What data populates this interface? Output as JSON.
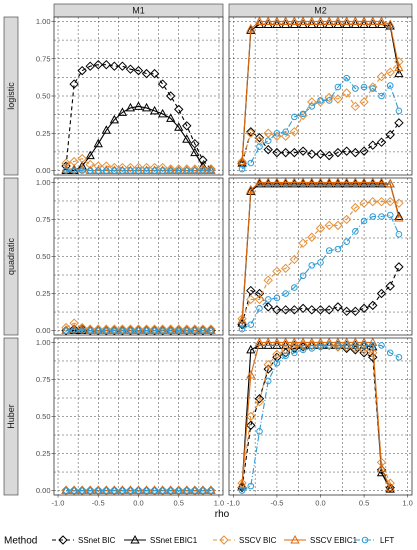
{
  "chart_data": {
    "type": "line",
    "xlabel": "rho",
    "ylim": [
      0,
      1
    ],
    "xlim": [
      -1.05,
      1.05
    ],
    "yticks": [
      "0.00",
      "0.25",
      "0.50",
      "0.75",
      "1.00"
    ],
    "yticks_values": [
      0,
      0.25,
      0.5,
      0.75,
      1.0
    ],
    "xticks": [
      "-1.0",
      "-0.5",
      "0.0",
      "0.5",
      "1.0"
    ],
    "xticks_values": [
      -1.0,
      -0.5,
      0.0,
      0.5,
      1.0
    ],
    "columns": [
      "M1",
      "M2"
    ],
    "rows": [
      "logistic",
      "quadratic",
      "Huber"
    ],
    "grid": true,
    "legend": {
      "title": "Method",
      "placement": "bottom",
      "entries": [
        {
          "label": "SSnet BIC",
          "color": "#000000",
          "marker": "diamond",
          "dash": "4,3"
        },
        {
          "label": "SSnet EBIC1",
          "color": "#000000",
          "marker": "triangle",
          "dash": ""
        },
        {
          "label": "SSCV BIC",
          "color": "#E69138",
          "marker": "diamond",
          "dash": "4,3"
        },
        {
          "label": "SSCV EBIC1",
          "color": "#D9690F",
          "marker": "triangle",
          "dash": ""
        },
        {
          "label": "LFT",
          "color": "#2E9CD6",
          "marker": "circle",
          "dash": "6,2,1,2"
        }
      ]
    },
    "x": [
      -0.9,
      -0.8,
      -0.7,
      -0.6,
      -0.5,
      -0.4,
      -0.3,
      -0.2,
      -0.1,
      0.0,
      0.1,
      0.2,
      0.3,
      0.4,
      0.5,
      0.6,
      0.7,
      0.8,
      0.9
    ],
    "panels": [
      {
        "row": "logistic",
        "column": "M1",
        "series": [
          {
            "method": "SSnet BIC",
            "values": [
              0.03,
              0.58,
              0.67,
              0.7,
              0.71,
              0.71,
              0.7,
              0.7,
              0.68,
              0.67,
              0.65,
              0.65,
              0.58,
              0.5,
              0.41,
              0.3,
              0.18,
              0.07,
              0.01
            ]
          },
          {
            "method": "SSnet EBIC1",
            "values": [
              0.0,
              0.0,
              0.03,
              0.1,
              0.18,
              0.27,
              0.34,
              0.39,
              0.42,
              0.43,
              0.42,
              0.4,
              0.38,
              0.35,
              0.29,
              0.21,
              0.12,
              0.03,
              0.0
            ]
          },
          {
            "method": "SSCV BIC",
            "values": [
              0.05,
              0.06,
              0.08,
              0.04,
              0.03,
              0.03,
              0.02,
              0.02,
              0.02,
              0.02,
              0.02,
              0.02,
              0.02,
              0.01,
              0.01,
              0.01,
              0.01,
              0.01,
              0.01
            ]
          },
          {
            "method": "SSCV EBIC1",
            "values": [
              0.01,
              0.01,
              0.01,
              0.0,
              0.0,
              0.0,
              0.0,
              0.0,
              0.0,
              0.0,
              0.0,
              0.0,
              0.0,
              0.0,
              0.0,
              0.0,
              0.0,
              0.0,
              0.0
            ]
          },
          {
            "method": "LFT",
            "values": [
              0.0,
              0.0,
              0.0,
              0.0,
              0.0,
              0.0,
              0.0,
              0.0,
              0.0,
              0.0,
              0.0,
              0.0,
              0.0,
              0.0,
              0.0,
              0.0,
              0.0,
              0.0,
              0.0
            ]
          }
        ]
      },
      {
        "row": "logistic",
        "column": "M2",
        "series": [
          {
            "method": "SSnet BIC",
            "values": [
              0.05,
              0.26,
              0.22,
              0.14,
              0.12,
              0.12,
              0.12,
              0.13,
              0.11,
              0.11,
              0.1,
              0.12,
              0.13,
              0.12,
              0.13,
              0.17,
              0.19,
              0.24,
              0.32
            ]
          },
          {
            "method": "SSnet EBIC1",
            "values": [
              0.05,
              0.94,
              0.98,
              0.98,
              0.98,
              0.98,
              0.98,
              0.98,
              0.98,
              0.98,
              0.98,
              0.98,
              0.98,
              0.98,
              0.98,
              0.98,
              0.98,
              0.97,
              0.65
            ]
          },
          {
            "method": "SSCV BIC",
            "values": [
              0.06,
              0.25,
              0.2,
              0.25,
              0.23,
              0.23,
              0.26,
              0.37,
              0.46,
              0.46,
              0.49,
              0.48,
              0.52,
              0.43,
              0.46,
              0.56,
              0.63,
              0.66,
              0.73
            ]
          },
          {
            "method": "SSCV EBIC1",
            "values": [
              0.06,
              0.95,
              1.0,
              1.0,
              1.0,
              1.0,
              1.0,
              1.0,
              1.0,
              1.0,
              1.0,
              1.0,
              1.0,
              1.0,
              1.0,
              1.0,
              1.0,
              0.98,
              0.69
            ]
          },
          {
            "method": "LFT",
            "values": [
              0.01,
              0.05,
              0.16,
              0.2,
              0.25,
              0.26,
              0.36,
              0.38,
              0.43,
              0.47,
              0.47,
              0.56,
              0.62,
              0.55,
              0.56,
              0.55,
              0.5,
              0.57,
              0.4
            ]
          }
        ]
      },
      {
        "row": "quadratic",
        "column": "M1",
        "series": [
          {
            "method": "SSnet BIC",
            "values": [
              0.0,
              0.01,
              0.01,
              0.0,
              0.0,
              0.0,
              0.0,
              0.0,
              0.0,
              0.0,
              0.0,
              0.0,
              0.0,
              0.0,
              0.0,
              0.0,
              0.0,
              0.0,
              0.0
            ]
          },
          {
            "method": "SSnet EBIC1",
            "values": [
              0.0,
              0.0,
              0.0,
              0.0,
              0.0,
              0.0,
              0.0,
              0.0,
              0.0,
              0.0,
              0.0,
              0.0,
              0.0,
              0.0,
              0.0,
              0.0,
              0.0,
              0.0,
              0.0
            ]
          },
          {
            "method": "SSCV BIC",
            "values": [
              0.02,
              0.05,
              0.02,
              0.01,
              0.01,
              0.01,
              0.01,
              0.01,
              0.01,
              0.01,
              0.01,
              0.01,
              0.01,
              0.01,
              0.01,
              0.01,
              0.01,
              0.01,
              0.01
            ]
          },
          {
            "method": "SSCV EBIC1",
            "values": [
              0.0,
              0.01,
              0.01,
              0.0,
              0.0,
              0.0,
              0.0,
              0.0,
              0.0,
              0.0,
              0.0,
              0.0,
              0.0,
              0.0,
              0.0,
              0.0,
              0.0,
              0.0,
              0.0
            ]
          },
          {
            "method": "LFT",
            "values": [
              0.0,
              0.0,
              0.0,
              0.0,
              0.0,
              0.0,
              0.0,
              0.0,
              0.0,
              0.0,
              0.0,
              0.0,
              0.0,
              0.0,
              0.0,
              0.0,
              0.0,
              0.0,
              0.0
            ]
          }
        ]
      },
      {
        "row": "quadratic",
        "column": "M2",
        "series": [
          {
            "method": "SSnet BIC",
            "values": [
              0.04,
              0.27,
              0.25,
              0.16,
              0.14,
              0.14,
              0.14,
              0.15,
              0.14,
              0.14,
              0.14,
              0.16,
              0.13,
              0.13,
              0.15,
              0.17,
              0.25,
              0.3,
              0.43
            ]
          },
          {
            "method": "SSnet EBIC1",
            "values": [
              0.05,
              0.94,
              0.99,
              0.99,
              0.99,
              0.99,
              0.99,
              0.99,
              0.99,
              0.99,
              0.99,
              0.99,
              0.99,
              0.99,
              0.99,
              0.99,
              0.99,
              0.99,
              0.77
            ]
          },
          {
            "method": "SSCV BIC",
            "values": [
              0.08,
              0.21,
              0.21,
              0.34,
              0.4,
              0.42,
              0.48,
              0.59,
              0.63,
              0.69,
              0.71,
              0.71,
              0.75,
              0.83,
              0.86,
              0.87,
              0.87,
              0.87,
              0.86
            ]
          },
          {
            "method": "SSCV EBIC1",
            "values": [
              0.07,
              0.95,
              1.0,
              1.0,
              1.0,
              1.0,
              1.0,
              1.0,
              1.0,
              1.0,
              1.0,
              1.0,
              1.0,
              1.0,
              1.0,
              1.0,
              1.0,
              0.99,
              0.76
            ]
          },
          {
            "method": "LFT",
            "values": [
              0.01,
              0.04,
              0.15,
              0.21,
              0.22,
              0.25,
              0.29,
              0.37,
              0.44,
              0.46,
              0.54,
              0.55,
              0.6,
              0.67,
              0.74,
              0.77,
              0.77,
              0.78,
              0.65
            ]
          }
        ]
      },
      {
        "row": "Huber",
        "column": "M1",
        "series": [
          {
            "method": "SSnet BIC",
            "values": [
              0.0,
              0.0,
              0.0,
              0.0,
              0.0,
              0.0,
              0.0,
              0.0,
              0.0,
              0.0,
              0.0,
              0.0,
              0.0,
              0.0,
              0.0,
              0.0,
              0.0,
              0.0,
              0.0
            ]
          },
          {
            "method": "SSnet EBIC1",
            "values": [
              0.0,
              0.0,
              0.0,
              0.0,
              0.0,
              0.0,
              0.0,
              0.0,
              0.0,
              0.0,
              0.0,
              0.0,
              0.0,
              0.0,
              0.0,
              0.0,
              0.0,
              0.0,
              0.0
            ]
          },
          {
            "method": "SSCV BIC",
            "values": [
              0.0,
              0.0,
              0.0,
              0.0,
              0.0,
              0.0,
              0.0,
              0.0,
              0.0,
              0.0,
              0.0,
              0.0,
              0.0,
              0.0,
              0.0,
              0.0,
              0.0,
              0.0,
              0.0
            ]
          },
          {
            "method": "SSCV EBIC1",
            "values": [
              0.0,
              0.0,
              0.0,
              0.0,
              0.0,
              0.0,
              0.0,
              0.0,
              0.0,
              0.0,
              0.0,
              0.0,
              0.0,
              0.0,
              0.0,
              0.0,
              0.0,
              0.0,
              0.0
            ]
          },
          {
            "method": "LFT",
            "values": [
              0.0,
              0.0,
              0.0,
              0.0,
              0.0,
              0.0,
              0.0,
              0.0,
              0.0,
              0.0,
              0.0,
              0.0,
              0.0,
              0.0,
              0.0,
              0.0,
              0.0,
              0.0,
              0.0
            ]
          }
        ]
      },
      {
        "row": "Huber",
        "column": "M2",
        "series": [
          {
            "method": "SSnet BIC",
            "values": [
              0.02,
              0.44,
              0.62,
              0.82,
              0.9,
              0.93,
              0.96,
              0.97,
              0.98,
              0.98,
              0.98,
              0.97,
              0.96,
              0.95,
              0.93,
              0.9,
              0.14,
              0.02,
              null
            ]
          },
          {
            "method": "SSnet EBIC1",
            "values": [
              0.03,
              0.95,
              0.98,
              0.98,
              0.98,
              0.98,
              0.98,
              0.98,
              0.98,
              0.98,
              0.98,
              0.98,
              0.98,
              0.98,
              0.98,
              0.97,
              0.12,
              0.01,
              null
            ]
          },
          {
            "method": "SSCV BIC",
            "values": [
              0.05,
              0.5,
              0.6,
              0.85,
              0.92,
              0.95,
              0.97,
              0.98,
              0.98,
              0.98,
              0.98,
              0.97,
              0.97,
              0.96,
              0.95,
              0.93,
              0.19,
              0.05,
              null
            ]
          },
          {
            "method": "SSCV EBIC1",
            "values": [
              0.04,
              0.78,
              1.0,
              1.0,
              1.0,
              1.0,
              1.0,
              1.0,
              1.0,
              1.0,
              1.0,
              1.0,
              1.0,
              1.0,
              1.0,
              1.0,
              0.15,
              0.02,
              null
            ]
          },
          {
            "method": "LFT",
            "values": [
              0.0,
              0.03,
              0.4,
              0.74,
              0.86,
              0.91,
              0.93,
              0.95,
              0.96,
              0.97,
              0.98,
              0.98,
              0.98,
              0.98,
              0.98,
              0.98,
              0.98,
              0.93,
              0.9
            ]
          }
        ]
      }
    ]
  }
}
